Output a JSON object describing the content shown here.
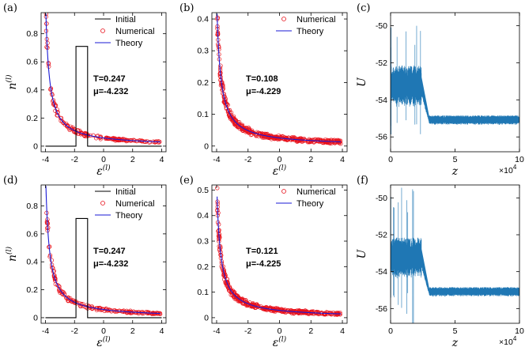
{
  "chart_data": [
    {
      "panel_label": "(a)",
      "type": "line",
      "xlabel": "ε",
      "xlabel_sup": "(l)",
      "ylabel": "n",
      "ylabel_sup": "(l)",
      "xlim": [
        -4.3,
        4.3
      ],
      "ylim": [
        -0.04,
        0.95
      ],
      "xticks": [
        -4,
        -2,
        0,
        2,
        4
      ],
      "yticks": [
        0,
        0.2,
        0.4,
        0.6,
        0.8
      ],
      "legend": [
        "Initial",
        "Numerical",
        "Theory"
      ],
      "colors": {
        "initial": "#000000",
        "numerical": "#e8121c",
        "theory": "#1a1ad6"
      },
      "initial_step": {
        "x": [
          -4,
          -1.9,
          -1.9,
          -1.1,
          -1.1,
          4
        ],
        "y": [
          0,
          0,
          0.71,
          0.71,
          0,
          0
        ]
      },
      "theory": {
        "T": 0.247,
        "mu": -4.232
      },
      "annotations": [
        "T=0.247",
        "μ=-4.232"
      ]
    },
    {
      "panel_label": "(b)",
      "type": "line",
      "xlabel": "ε",
      "xlabel_sup": "(l)",
      "ylabel": "",
      "ylabel_sup": "",
      "xlim": [
        -4.3,
        4.3
      ],
      "ylim": [
        -0.018,
        0.42
      ],
      "xticks": [
        -4,
        -2,
        0,
        2,
        4
      ],
      "yticks": [
        0,
        0.1,
        0.2,
        0.3,
        0.4
      ],
      "legend": [
        "Numerical",
        "Theory"
      ],
      "colors": {
        "numerical": "#e8121c",
        "theory": "#1a1ad6"
      },
      "theory": {
        "T": 0.108,
        "mu": -4.229
      },
      "annotations": [
        "T=0.108",
        "μ=-4.229"
      ]
    },
    {
      "panel_label": "(c)",
      "type": "line",
      "xlabel": "z",
      "ylabel": "U",
      "xlim": [
        0,
        10
      ],
      "ylim": [
        -56.8,
        -49.3
      ],
      "xticks": [
        0,
        5,
        10
      ],
      "yticks": [
        -50,
        -52,
        -54,
        -56
      ],
      "x_multiplier": "×10",
      "x_multiplier_exp": "4",
      "color": "#1f77b4",
      "profile": {
        "plateau_before": -53.3,
        "plateau_after": -55.1,
        "transition_z": [
          2.4,
          3.0
        ],
        "max_spike": -50.4
      }
    },
    {
      "panel_label": "(d)",
      "type": "line",
      "xlabel": "ε",
      "xlabel_sup": "(l)",
      "ylabel": "n",
      "ylabel_sup": "(l)",
      "xlim": [
        -4.3,
        4.3
      ],
      "ylim": [
        -0.04,
        0.95
      ],
      "xticks": [
        -4,
        -2,
        0,
        2,
        4
      ],
      "yticks": [
        0,
        0.2,
        0.4,
        0.6,
        0.8
      ],
      "legend": [
        "Initial",
        "Numerical",
        "Theory"
      ],
      "colors": {
        "initial": "#000000",
        "numerical": "#e8121c",
        "theory": "#1a1ad6"
      },
      "initial_step": {
        "x": [
          -4,
          -1.9,
          -1.9,
          -1.1,
          -1.1,
          4
        ],
        "y": [
          0,
          0,
          0.71,
          0.71,
          0,
          0
        ]
      },
      "theory": {
        "T": 0.247,
        "mu": -4.232
      },
      "annotations": [
        "T=0.247",
        "μ=-4.232"
      ]
    },
    {
      "panel_label": "(e)",
      "type": "line",
      "xlabel": "ε",
      "xlabel_sup": "(l)",
      "ylabel": "",
      "ylabel_sup": "",
      "xlim": [
        -4.3,
        4.3
      ],
      "ylim": [
        -0.022,
        0.52
      ],
      "xticks": [
        -4,
        -2,
        0,
        2,
        4
      ],
      "yticks": [
        0,
        0.1,
        0.2,
        0.3,
        0.4,
        0.5
      ],
      "legend": [
        "Numerical",
        "Theory"
      ],
      "colors": {
        "numerical": "#e8121c",
        "theory": "#1a1ad6"
      },
      "theory": {
        "T": 0.121,
        "mu": -4.225
      },
      "annotations": [
        "T=0.121",
        "μ=-4.225"
      ]
    },
    {
      "panel_label": "(f)",
      "type": "line",
      "xlabel": "z",
      "ylabel": "U",
      "xlim": [
        0,
        10
      ],
      "ylim": [
        -56.8,
        -49.3
      ],
      "xticks": [
        0,
        5,
        10
      ],
      "yticks": [
        -50,
        -52,
        -54,
        -56
      ],
      "x_multiplier": "×10",
      "x_multiplier_exp": "4",
      "color": "#1f77b4",
      "profile": {
        "plateau_before": -53.3,
        "plateau_after": -55.1,
        "transition_z": [
          2.4,
          3.0
        ],
        "max_spike": -50.4
      }
    }
  ]
}
